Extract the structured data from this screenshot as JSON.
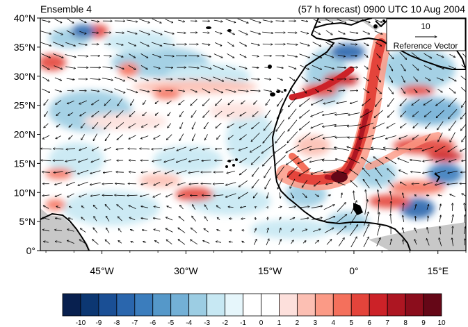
{
  "header": {
    "left_title": "Ensemble 4",
    "right_title": "(57 h forecast) 0900 UTC 10 Aug 2004"
  },
  "axes": {
    "lat_labels": [
      "0°",
      "5°N",
      "10°N",
      "15°N",
      "20°N",
      "25°N",
      "30°N",
      "35°N",
      "40°N"
    ],
    "lat_values": [
      0,
      5,
      10,
      15,
      20,
      25,
      30,
      35,
      40
    ],
    "lon_labels": [
      "45°W",
      "30°W",
      "15°W",
      "0°",
      "15°E"
    ],
    "lon_values": [
      -45,
      -30,
      -15,
      0,
      15
    ],
    "lon_range": [
      -56,
      20
    ],
    "lat_range": [
      0,
      40
    ]
  },
  "reference_vector": {
    "magnitude_label": "10",
    "caption": "Reference Vector"
  },
  "colorbar": {
    "tick_labels": [
      "-10",
      "-9",
      "-8",
      "-7",
      "-6",
      "-5",
      "-4",
      "-3",
      "-2",
      "-1",
      "0",
      "1",
      "2",
      "3",
      "4",
      "5",
      "6",
      "7",
      "8",
      "9",
      "10"
    ],
    "colors": [
      "#08204f",
      "#0c3772",
      "#1a4f95",
      "#2a66ad",
      "#3b7dbd",
      "#5598c9",
      "#73b0d6",
      "#9ccde3",
      "#c7e8f3",
      "#e6f6fb",
      "#ffffff",
      "#ffffff",
      "#fde0dc",
      "#fcbfb3",
      "#fb9a86",
      "#f4705c",
      "#e4443b",
      "#cc2228",
      "#ad1622",
      "#8b0d1c",
      "#650717"
    ]
  },
  "colors": {
    "land_outline": "#000000",
    "missing": "#c8c8c8"
  }
}
